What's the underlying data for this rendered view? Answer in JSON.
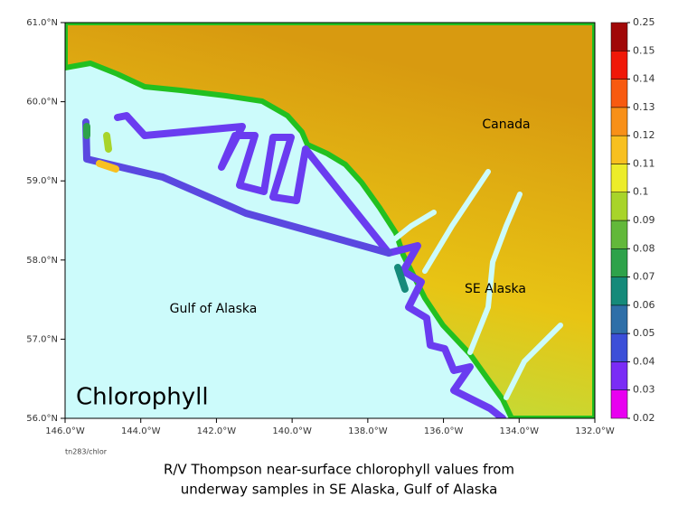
{
  "map": {
    "title": "Chlorophyll",
    "labels": [
      "Canada",
      "SE Alaska",
      "Gulf of Alaska"
    ],
    "xlim": [
      -146,
      -132
    ],
    "ylim": [
      56,
      61
    ],
    "xticks": [
      {
        "value": -146,
        "label": "146.0°W"
      },
      {
        "value": -144,
        "label": "144.0°W"
      },
      {
        "value": -142,
        "label": "142.0°W"
      },
      {
        "value": -140,
        "label": "140.0°W"
      },
      {
        "value": -138,
        "label": "138.0°W"
      },
      {
        "value": -136,
        "label": "136.0°W"
      },
      {
        "value": -134,
        "label": "134.0°W"
      },
      {
        "value": -132,
        "label": "132.0°W"
      }
    ],
    "yticks": [
      {
        "value": 56,
        "label": "56.0°N"
      },
      {
        "value": 57,
        "label": "57.0°N"
      },
      {
        "value": 58,
        "label": "58.0°N"
      },
      {
        "value": 59,
        "label": "59.0°N"
      },
      {
        "value": 60,
        "label": "60.0°N"
      },
      {
        "value": 61,
        "label": "61.0°N"
      }
    ],
    "colorbar": {
      "ticks": [
        0.02,
        0.03,
        0.04,
        0.05,
        0.06,
        0.07,
        0.08,
        0.09,
        0.1,
        0.11,
        0.12,
        0.13,
        0.14,
        0.15,
        0.25
      ],
      "colors": [
        "#e800f0",
        "#7a2cf5",
        "#3c4fd8",
        "#2f6fa8",
        "#158a7a",
        "#2ea24a",
        "#62b83a",
        "#a8d42a",
        "#ecec2a",
        "#f8c020",
        "#f89018",
        "#f85a10",
        "#f01808",
        "#a00808"
      ]
    },
    "credit": "tn283/chlor"
  },
  "caption": [
    "R/V Thompson near-surface chlorophyll values from",
    "underway samples in SE Alaska, Gulf of Alaska"
  ]
}
